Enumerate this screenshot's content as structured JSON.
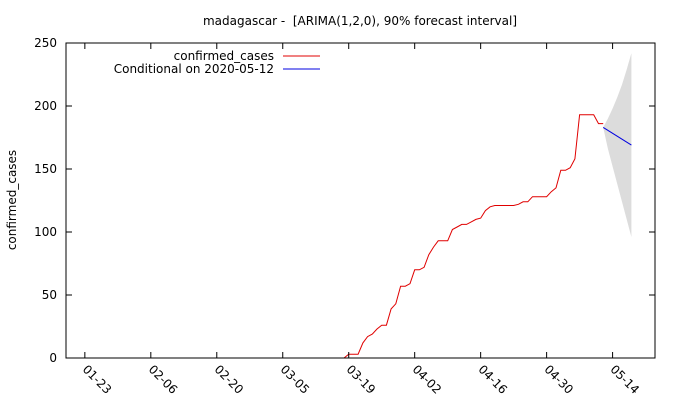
{
  "chart_data": {
    "type": "line",
    "title": "madagascar -  [ARIMA(1,2,0), 90% forecast interval]",
    "xlabel": "",
    "ylabel": "confirmed_cases",
    "x_ticks": [
      "01-23",
      "02-06",
      "02-20",
      "03-05",
      "03-19",
      "04-02",
      "04-16",
      "04-30",
      "05-14"
    ],
    "x_tick_day": [
      0,
      14,
      28,
      42,
      56,
      70,
      84,
      98,
      112
    ],
    "x_range_day": [
      -4,
      121
    ],
    "ylim": [
      0,
      250
    ],
    "y_ticks": [
      0,
      50,
      100,
      150,
      200,
      250
    ],
    "grid": false,
    "legend_position": "top",
    "series": [
      {
        "name": "confirmed_cases",
        "color": "#e00000",
        "points": [
          [
            55,
            0
          ],
          [
            56,
            3
          ],
          [
            57,
            3
          ],
          [
            58,
            3
          ],
          [
            59,
            12
          ],
          [
            60,
            17
          ],
          [
            61,
            19
          ],
          [
            62,
            23
          ],
          [
            63,
            26
          ],
          [
            64,
            26
          ],
          [
            65,
            39
          ],
          [
            66,
            43
          ],
          [
            67,
            57
          ],
          [
            68,
            57
          ],
          [
            69,
            59
          ],
          [
            70,
            70
          ],
          [
            71,
            70
          ],
          [
            72,
            72
          ],
          [
            73,
            82
          ],
          [
            74,
            88
          ],
          [
            75,
            93
          ],
          [
            76,
            93
          ],
          [
            77,
            93
          ],
          [
            78,
            102
          ],
          [
            79,
            104
          ],
          [
            80,
            106
          ],
          [
            81,
            106
          ],
          [
            82,
            108
          ],
          [
            83,
            110
          ],
          [
            84,
            111
          ],
          [
            85,
            117
          ],
          [
            86,
            120
          ],
          [
            87,
            121
          ],
          [
            88,
            121
          ],
          [
            89,
            121
          ],
          [
            90,
            121
          ],
          [
            91,
            121
          ],
          [
            92,
            122
          ],
          [
            93,
            124
          ],
          [
            94,
            124
          ],
          [
            95,
            128
          ],
          [
            96,
            128
          ],
          [
            97,
            128
          ],
          [
            98,
            128
          ],
          [
            99,
            132
          ],
          [
            100,
            135
          ],
          [
            101,
            149
          ],
          [
            102,
            149
          ],
          [
            103,
            151
          ],
          [
            104,
            158
          ],
          [
            105,
            193
          ],
          [
            106,
            193
          ],
          [
            107,
            193
          ],
          [
            108,
            193
          ],
          [
            109,
            186
          ],
          [
            110,
            186
          ]
        ]
      },
      {
        "name": "Conditional on 2020-05-12",
        "color": "#0000e0",
        "points": [
          [
            110,
            183
          ],
          [
            116,
            169
          ]
        ]
      }
    ],
    "forecast_interval": {
      "color": "#dcdcdc",
      "upper": [
        [
          110,
          183
        ],
        [
          111,
          190
        ],
        [
          112,
          198
        ],
        [
          113,
          207
        ],
        [
          114,
          217
        ],
        [
          115,
          229
        ],
        [
          116,
          242
        ]
      ],
      "lower": [
        [
          110,
          183
        ],
        [
          111,
          166
        ],
        [
          112,
          152
        ],
        [
          113,
          138
        ],
        [
          114,
          124
        ],
        [
          115,
          110
        ],
        [
          116,
          96
        ]
      ]
    }
  }
}
